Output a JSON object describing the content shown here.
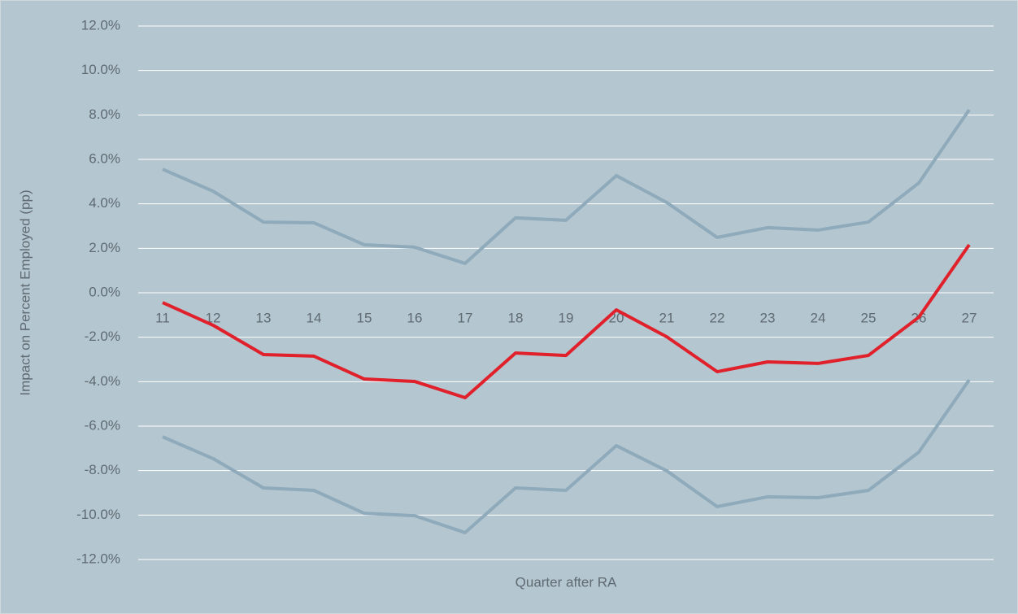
{
  "chart_data": {
    "type": "line",
    "x_label": "Quarter after RA",
    "y_label": "Impact on Percent Employed (pp)",
    "categories": [
      "11",
      "12",
      "13",
      "14",
      "15",
      "16",
      "17",
      "18",
      "19",
      "20",
      "21",
      "22",
      "23",
      "24",
      "25",
      "26",
      "27"
    ],
    "series": [
      {
        "color": "#8eaabb",
        "values": [
          5.56,
          4.57,
          3.18,
          3.15,
          2.16,
          2.05,
          1.32,
          3.37,
          3.26,
          5.27,
          4.06,
          2.49,
          2.93,
          2.82,
          3.18,
          4.94,
          8.23
        ]
      },
      {
        "color": "#e0202a",
        "values": [
          -0.44,
          -1.46,
          -2.78,
          -2.85,
          -3.88,
          -3.99,
          -4.72,
          -2.71,
          -2.82,
          -0.77,
          -1.98,
          -3.55,
          -3.11,
          -3.18,
          -2.82,
          -1.1,
          2.16
        ]
      },
      {
        "color": "#8eaabb",
        "values": [
          -6.48,
          -7.46,
          -8.78,
          -8.89,
          -9.92,
          -10.03,
          -10.79,
          -8.78,
          -8.89,
          -6.88,
          -8.01,
          -9.62,
          -9.18,
          -9.22,
          -8.89,
          -7.17,
          -3.92
        ]
      }
    ],
    "ylim": [
      -12,
      12
    ],
    "yticks": [
      {
        "value": -12,
        "label": "-12.0%"
      },
      {
        "value": -10,
        "label": "-10.0%"
      },
      {
        "value": -8,
        "label": "-8.0%"
      },
      {
        "value": -6,
        "label": "-6.0%"
      },
      {
        "value": -4,
        "label": "-4.0%"
      },
      {
        "value": -2,
        "label": "-2.0%"
      },
      {
        "value": 0,
        "label": "0.0%"
      },
      {
        "value": 2,
        "label": "2.0%"
      },
      {
        "value": 4,
        "label": "4.0%"
      },
      {
        "value": 6,
        "label": "6.0%"
      },
      {
        "value": 8,
        "label": "8.0%"
      },
      {
        "value": 10,
        "label": "10.0%"
      },
      {
        "value": 12,
        "label": "12.0%"
      }
    ],
    "grid": true
  }
}
